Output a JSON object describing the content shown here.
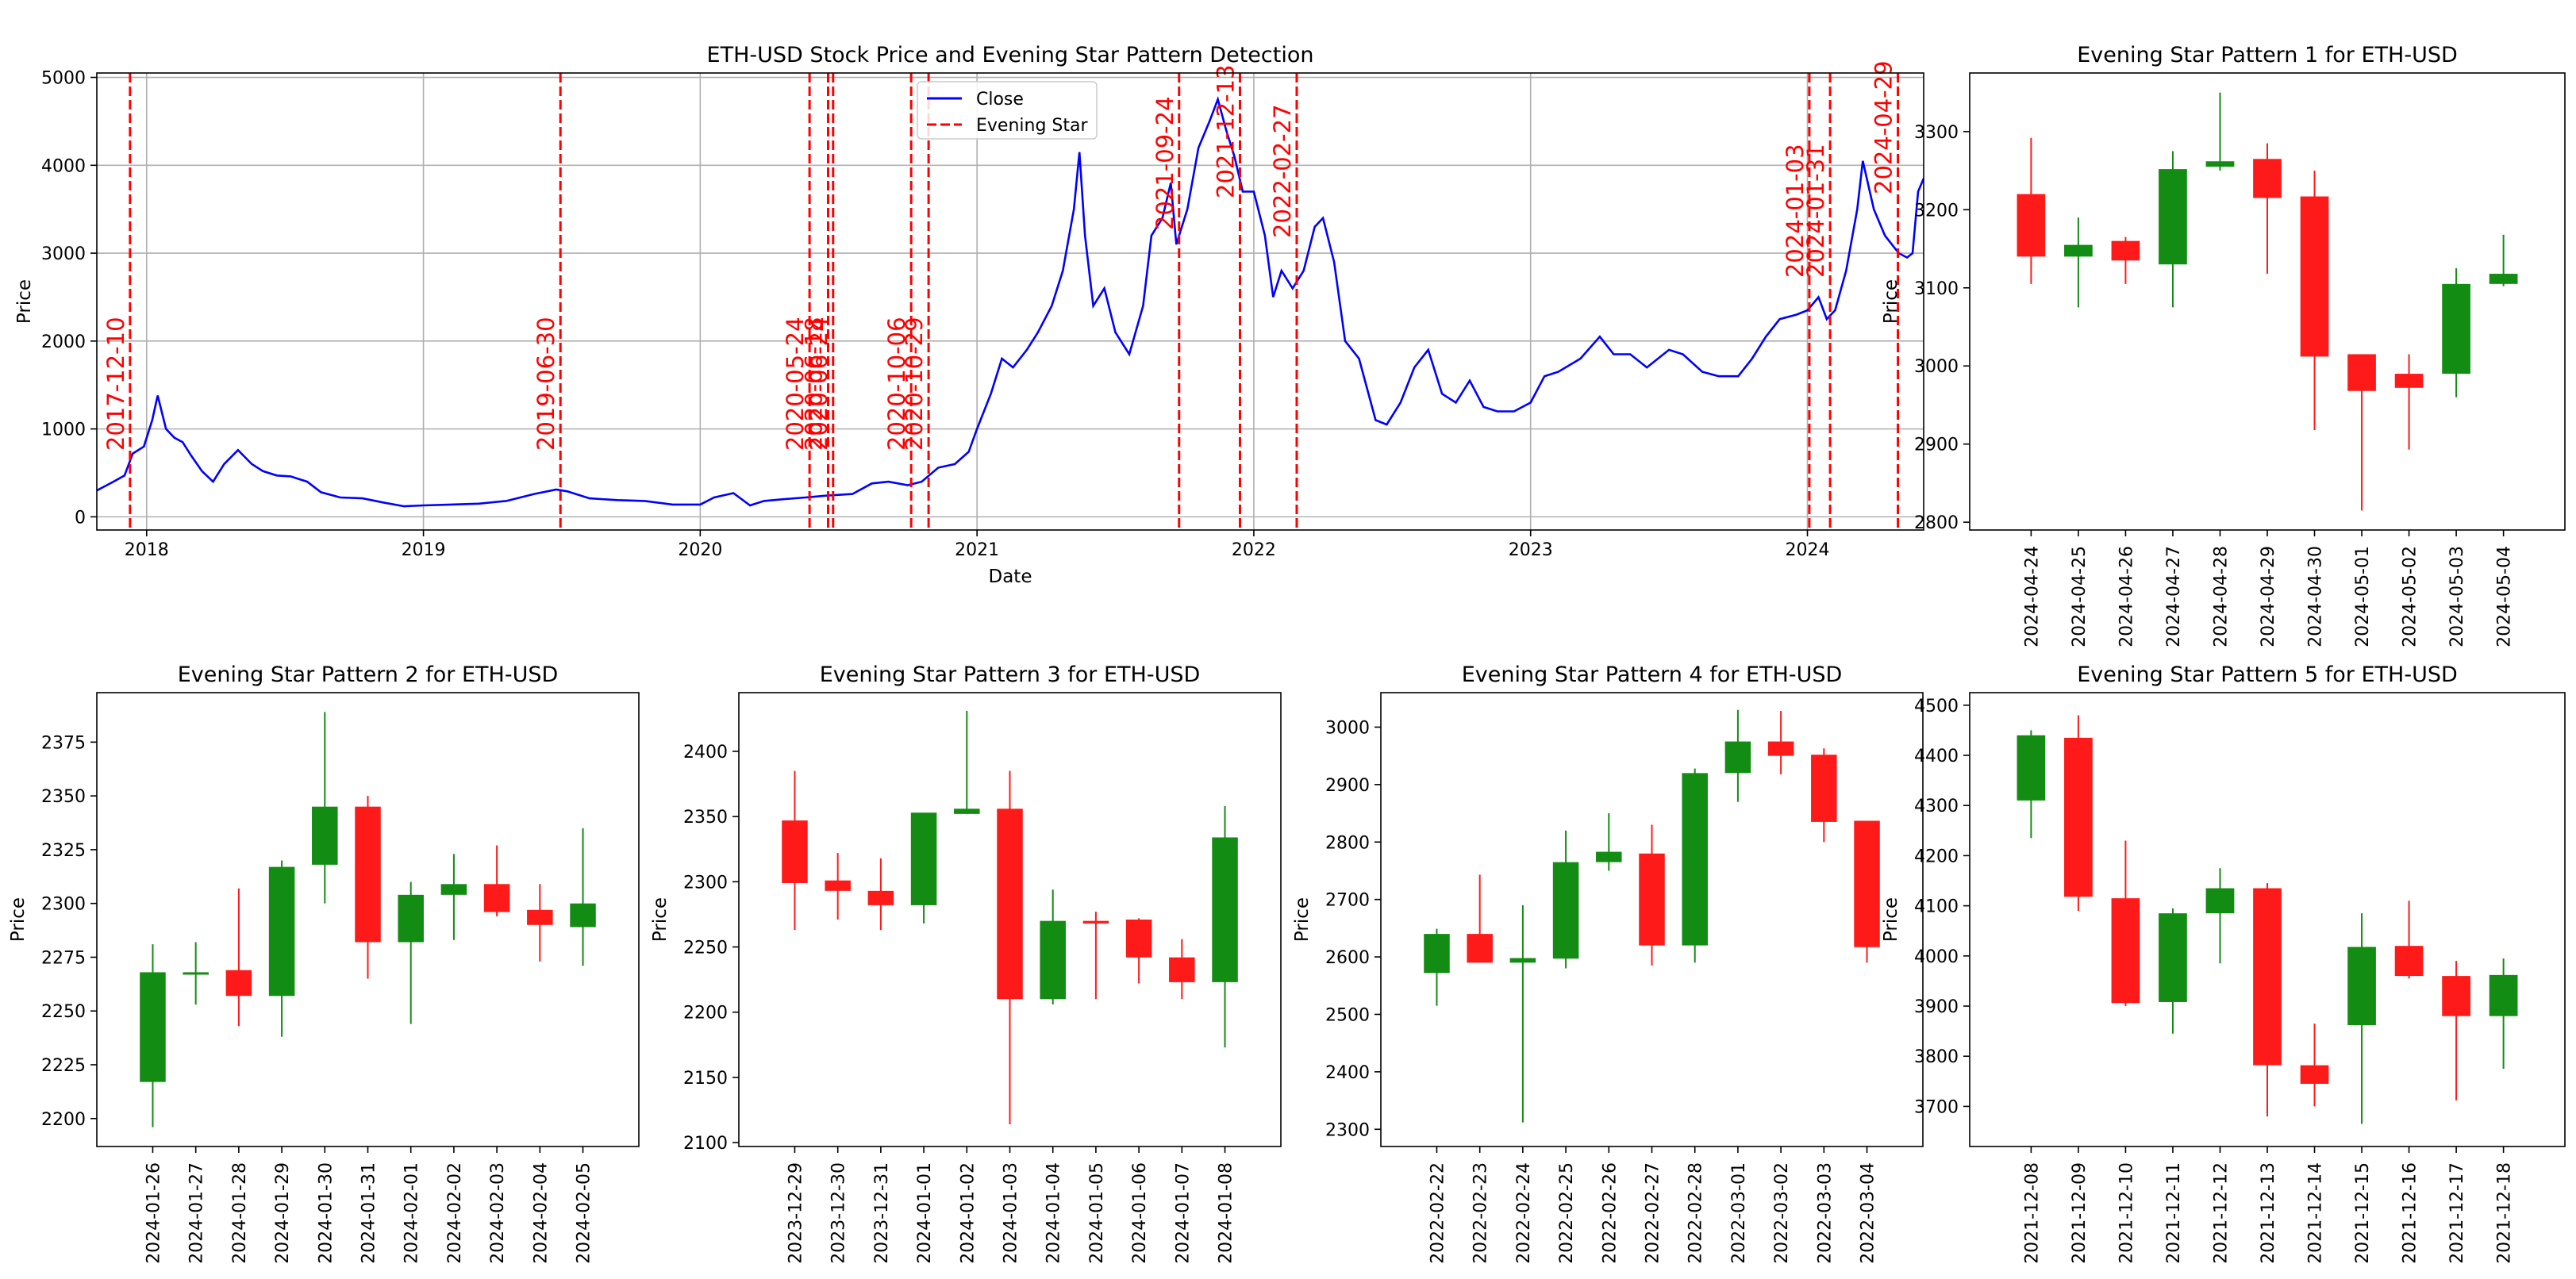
{
  "chart_data": [
    {
      "type": "line",
      "title": "ETH-USD Stock Price and Evening Star Pattern Detection",
      "xlabel": "Date",
      "ylabel": "Price",
      "xlim": [
        2017.82,
        2024.42
      ],
      "ylim": [
        -150,
        5050
      ],
      "grid": true,
      "legend": {
        "position": "top-center",
        "entries": [
          "Close",
          "Evening Star"
        ]
      },
      "x_ticks": [
        {
          "label": "2018",
          "x": 2018
        },
        {
          "label": "2019",
          "x": 2019
        },
        {
          "label": "2020",
          "x": 2020
        },
        {
          "label": "2021",
          "x": 2021
        },
        {
          "label": "2022",
          "x": 2022
        },
        {
          "label": "2023",
          "x": 2023
        },
        {
          "label": "2024",
          "x": 2024
        }
      ],
      "y_ticks": [
        0,
        1000,
        2000,
        3000,
        4000,
        5000
      ],
      "series": [
        {
          "name": "Close",
          "color": "#0000ff",
          "points": [
            [
              2017.82,
              300
            ],
            [
              2017.88,
              400
            ],
            [
              2017.92,
              470
            ],
            [
              2017.95,
              720
            ],
            [
              2017.99,
              800
            ],
            [
              2018.02,
              1100
            ],
            [
              2018.04,
              1380
            ],
            [
              2018.07,
              1000
            ],
            [
              2018.1,
              900
            ],
            [
              2018.13,
              850
            ],
            [
              2018.16,
              700
            ],
            [
              2018.2,
              520
            ],
            [
              2018.24,
              400
            ],
            [
              2018.28,
              600
            ],
            [
              2018.33,
              760
            ],
            [
              2018.38,
              600
            ],
            [
              2018.42,
              520
            ],
            [
              2018.47,
              470
            ],
            [
              2018.52,
              460
            ],
            [
              2018.58,
              400
            ],
            [
              2018.63,
              280
            ],
            [
              2018.7,
              220
            ],
            [
              2018.78,
              210
            ],
            [
              2018.86,
              160
            ],
            [
              2018.93,
              120
            ],
            [
              2019.0,
              130
            ],
            [
              2019.1,
              140
            ],
            [
              2019.2,
              150
            ],
            [
              2019.3,
              180
            ],
            [
              2019.4,
              260
            ],
            [
              2019.48,
              310
            ],
            [
              2019.52,
              290
            ],
            [
              2019.6,
              210
            ],
            [
              2019.7,
              190
            ],
            [
              2019.8,
              180
            ],
            [
              2019.9,
              140
            ],
            [
              2020.0,
              140
            ],
            [
              2020.05,
              220
            ],
            [
              2020.12,
              270
            ],
            [
              2020.18,
              130
            ],
            [
              2020.23,
              180
            ],
            [
              2020.3,
              200
            ],
            [
              2020.38,
              220
            ],
            [
              2020.45,
              240
            ],
            [
              2020.55,
              260
            ],
            [
              2020.62,
              380
            ],
            [
              2020.68,
              400
            ],
            [
              2020.75,
              360
            ],
            [
              2020.8,
              400
            ],
            [
              2020.86,
              560
            ],
            [
              2020.92,
              600
            ],
            [
              2020.97,
              740
            ],
            [
              2021.0,
              1000
            ],
            [
              2021.05,
              1400
            ],
            [
              2021.09,
              1800
            ],
            [
              2021.13,
              1700
            ],
            [
              2021.18,
              1900
            ],
            [
              2021.22,
              2100
            ],
            [
              2021.27,
              2400
            ],
            [
              2021.31,
              2800
            ],
            [
              2021.35,
              3500
            ],
            [
              2021.37,
              4150
            ],
            [
              2021.39,
              3200
            ],
            [
              2021.42,
              2400
            ],
            [
              2021.46,
              2600
            ],
            [
              2021.5,
              2100
            ],
            [
              2021.55,
              1850
            ],
            [
              2021.6,
              2400
            ],
            [
              2021.63,
              3200
            ],
            [
              2021.67,
              3400
            ],
            [
              2021.7,
              3800
            ],
            [
              2021.72,
              3100
            ],
            [
              2021.76,
              3500
            ],
            [
              2021.8,
              4200
            ],
            [
              2021.84,
              4500
            ],
            [
              2021.87,
              4750
            ],
            [
              2021.9,
              4400
            ],
            [
              2021.93,
              4100
            ],
            [
              2021.96,
              3700
            ],
            [
              2022.0,
              3700
            ],
            [
              2022.04,
              3200
            ],
            [
              2022.07,
              2500
            ],
            [
              2022.1,
              2800
            ],
            [
              2022.14,
              2600
            ],
            [
              2022.18,
              2800
            ],
            [
              2022.22,
              3300
            ],
            [
              2022.25,
              3400
            ],
            [
              2022.29,
              2900
            ],
            [
              2022.33,
              2000
            ],
            [
              2022.38,
              1800
            ],
            [
              2022.44,
              1100
            ],
            [
              2022.48,
              1050
            ],
            [
              2022.53,
              1300
            ],
            [
              2022.58,
              1700
            ],
            [
              2022.63,
              1900
            ],
            [
              2022.68,
              1400
            ],
            [
              2022.73,
              1300
            ],
            [
              2022.78,
              1550
            ],
            [
              2022.83,
              1250
            ],
            [
              2022.88,
              1200
            ],
            [
              2022.94,
              1200
            ],
            [
              2023.0,
              1300
            ],
            [
              2023.05,
              1600
            ],
            [
              2023.1,
              1650
            ],
            [
              2023.18,
              1800
            ],
            [
              2023.25,
              2050
            ],
            [
              2023.3,
              1850
            ],
            [
              2023.36,
              1850
            ],
            [
              2023.42,
              1700
            ],
            [
              2023.5,
              1900
            ],
            [
              2023.55,
              1850
            ],
            [
              2023.62,
              1650
            ],
            [
              2023.68,
              1600
            ],
            [
              2023.75,
              1600
            ],
            [
              2023.8,
              1800
            ],
            [
              2023.85,
              2050
            ],
            [
              2023.9,
              2250
            ],
            [
              2023.96,
              2300
            ],
            [
              2024.0,
              2350
            ],
            [
              2024.04,
              2500
            ],
            [
              2024.07,
              2250
            ],
            [
              2024.1,
              2350
            ],
            [
              2024.14,
              2800
            ],
            [
              2024.18,
              3500
            ],
            [
              2024.2,
              4050
            ],
            [
              2024.24,
              3500
            ],
            [
              2024.28,
              3200
            ],
            [
              2024.33,
              3000
            ],
            [
              2024.36,
              2950
            ],
            [
              2024.38,
              3000
            ],
            [
              2024.4,
              3700
            ],
            [
              2024.42,
              3850
            ]
          ]
        }
      ],
      "evening_star_markers": {
        "name": "Evening Star",
        "color": "#ff0000",
        "dates": [
          {
            "label": "2017-12-10",
            "x": 2017.94
          },
          {
            "label": "2019-06-30",
            "x": 2019.495
          },
          {
            "label": "2020-05-24",
            "x": 2020.395
          },
          {
            "label": "2020-06-18",
            "x": 2020.462
          },
          {
            "label": "2020-06-24",
            "x": 2020.48
          },
          {
            "label": "2020-10-06",
            "x": 2020.762
          },
          {
            "label": "2020-10-29",
            "x": 2020.825
          },
          {
            "label": "2021-09-24",
            "x": 2021.73
          },
          {
            "label": "2021-12-13",
            "x": 2021.95
          },
          {
            "label": "2022-02-27",
            "x": 2022.155
          },
          {
            "label": "2024-01-03",
            "x": 2024.007
          },
          {
            "label": "2024-01-31",
            "x": 2024.082
          },
          {
            "label": "2024-04-29",
            "x": 2024.327
          }
        ]
      }
    },
    {
      "type": "candlestick",
      "title": "Evening Star Pattern 1 for ETH-USD",
      "ylabel": "Price",
      "ylim": [
        2790,
        3375
      ],
      "y_ticks": [
        2800,
        2900,
        3000,
        3100,
        3200,
        3300
      ],
      "dates": [
        "2024-04-24",
        "2024-04-25",
        "2024-04-26",
        "2024-04-27",
        "2024-04-28",
        "2024-04-29",
        "2024-04-30",
        "2024-05-01",
        "2024-05-02",
        "2024-05-03",
        "2024-05-04"
      ],
      "open": [
        3220,
        3140,
        3160,
        3130,
        3255,
        3265,
        3217,
        3015,
        2990,
        2990,
        3105
      ],
      "high": [
        3292,
        3190,
        3165,
        3275,
        3350,
        3285,
        3250,
        3015,
        3015,
        3125,
        3168
      ],
      "low": [
        3105,
        3075,
        3105,
        3075,
        3250,
        3118,
        2918,
        2815,
        2893,
        2960,
        3102
      ],
      "close": [
        3140,
        3155,
        3135,
        3252,
        3262,
        3215,
        3012,
        2968,
        2972,
        3105,
        3118
      ]
    },
    {
      "type": "candlestick",
      "title": "Evening Star Pattern 2 for ETH-USD",
      "ylabel": "Price",
      "ylim": [
        2187,
        2398
      ],
      "y_ticks": [
        2200,
        2225,
        2250,
        2275,
        2300,
        2325,
        2350,
        2375
      ],
      "dates": [
        "2024-01-26",
        "2024-01-27",
        "2024-01-28",
        "2024-01-29",
        "2024-01-30",
        "2024-01-31",
        "2024-02-01",
        "2024-02-02",
        "2024-02-03",
        "2024-02-04",
        "2024-02-05"
      ],
      "open": [
        2217,
        2267,
        2269,
        2257,
        2318,
        2345,
        2282,
        2304,
        2309,
        2297,
        2289
      ],
      "high": [
        2281,
        2282,
        2307,
        2320,
        2389,
        2350,
        2310,
        2323,
        2327,
        2309,
        2335
      ],
      "low": [
        2196,
        2253,
        2243,
        2238,
        2300,
        2265,
        2244,
        2283,
        2294,
        2273,
        2271
      ],
      "close": [
        2268,
        2268,
        2257,
        2317,
        2345,
        2282,
        2304,
        2309,
        2296,
        2290,
        2300
      ]
    },
    {
      "type": "candlestick",
      "title": "Evening Star Pattern 3 for ETH-USD",
      "ylabel": "Price",
      "ylim": [
        2097,
        2445
      ],
      "y_ticks": [
        2100,
        2150,
        2200,
        2250,
        2300,
        2350,
        2400
      ],
      "dates": [
        "2023-12-29",
        "2023-12-30",
        "2023-12-31",
        "2024-01-01",
        "2024-01-02",
        "2024-01-03",
        "2024-01-04",
        "2024-01-05",
        "2024-01-06",
        "2024-01-07",
        "2024-01-08"
      ],
      "open": [
        2347,
        2301,
        2293,
        2282,
        2352,
        2356,
        2210,
        2270,
        2271,
        2242,
        2223
      ],
      "high": [
        2385,
        2322,
        2318,
        2352,
        2431,
        2385,
        2294,
        2277,
        2272,
        2256,
        2358
      ],
      "low": [
        2263,
        2271,
        2263,
        2268,
        2352,
        2114,
        2206,
        2210,
        2222,
        2210,
        2173
      ],
      "close": [
        2299,
        2293,
        2282,
        2353,
        2356,
        2210,
        2270,
        2268,
        2242,
        2223,
        2334
      ]
    },
    {
      "type": "candlestick",
      "title": "Evening Star Pattern 4 for ETH-USD",
      "ylabel": "Price",
      "ylim": [
        2270,
        3060
      ],
      "y_ticks": [
        2300,
        2400,
        2500,
        2600,
        2700,
        2800,
        2900,
        3000
      ],
      "dates": [
        "2022-02-22",
        "2022-02-23",
        "2022-02-24",
        "2022-02-25",
        "2022-02-26",
        "2022-02-27",
        "2022-02-28",
        "2022-03-01",
        "2022-03-02",
        "2022-03-03",
        "2022-03-04"
      ],
      "open": [
        2572,
        2640,
        2590,
        2597,
        2765,
        2780,
        2620,
        2920,
        2975,
        2952,
        2837
      ],
      "high": [
        2649,
        2743,
        2690,
        2820,
        2850,
        2830,
        2928,
        3030,
        3028,
        2963,
        2837
      ],
      "low": [
        2515,
        2590,
        2312,
        2580,
        2750,
        2585,
        2590,
        2870,
        2918,
        2800,
        2590
      ],
      "close": [
        2640,
        2590,
        2598,
        2765,
        2783,
        2620,
        2920,
        2975,
        2950,
        2835,
        2617
      ]
    },
    {
      "type": "candlestick",
      "title": "Evening Star Pattern 5 for ETH-USD",
      "ylabel": "Price",
      "ylim": [
        3620,
        4525
      ],
      "y_ticks": [
        3700,
        3800,
        3900,
        4000,
        4100,
        4200,
        4300,
        4400,
        4500
      ],
      "dates": [
        "2021-12-08",
        "2021-12-09",
        "2021-12-10",
        "2021-12-11",
        "2021-12-12",
        "2021-12-13",
        "2021-12-14",
        "2021-12-15",
        "2021-12-16",
        "2021-12-17",
        "2021-12-18"
      ],
      "open": [
        4310,
        4435,
        4115,
        3908,
        4085,
        4135,
        3782,
        3862,
        4020,
        3960,
        3880
      ],
      "high": [
        4450,
        4480,
        4230,
        4095,
        4175,
        4145,
        3865,
        4085,
        4110,
        3990,
        3995
      ],
      "low": [
        4235,
        4090,
        3900,
        3845,
        3985,
        3680,
        3700,
        3665,
        3955,
        3712,
        3775
      ],
      "close": [
        4440,
        4118,
        3906,
        4085,
        4135,
        3782,
        3745,
        4018,
        3960,
        3880,
        3962
      ]
    }
  ],
  "colors": {
    "up": "#138c13",
    "down": "#ff1a1a",
    "line": "#0000ff",
    "marker": "#ff0000"
  }
}
